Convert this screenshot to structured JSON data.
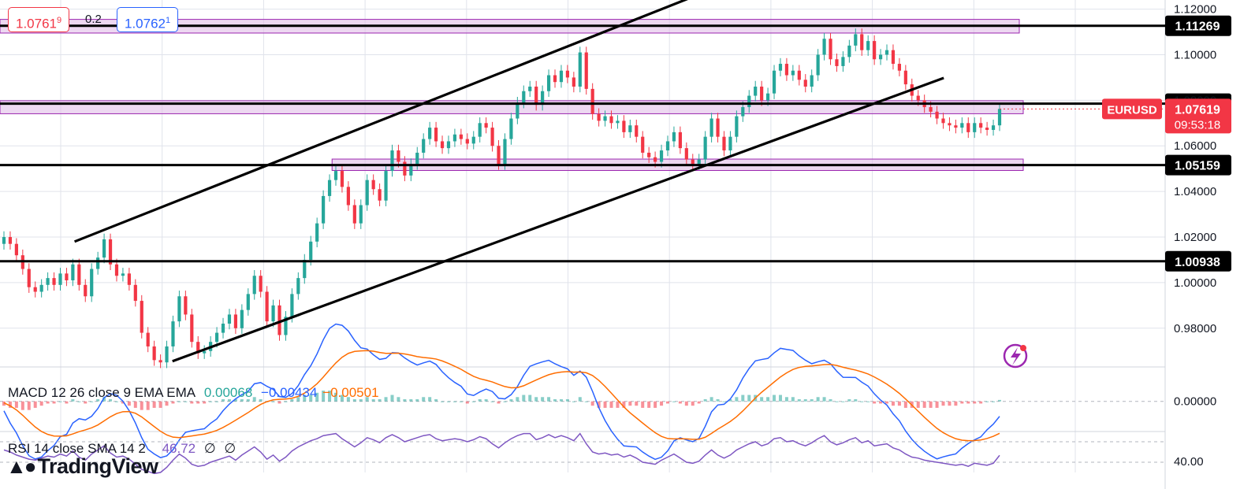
{
  "quote": {
    "bid_main": "1.0761",
    "bid_sup": "9",
    "spread": "0.2",
    "ask_main": "1.0762",
    "ask_sup": "1"
  },
  "symbol": "EURUSD",
  "last_price": "1.07619",
  "countdown": "09:53:18",
  "macd_legend": {
    "title": "MACD 12 26 close 9 EMA EMA",
    "histogram": "0.00068",
    "macd": "−0.00434",
    "signal": "−0.00501"
  },
  "rsi_legend": {
    "title": "RSI 14 close SMA 14 2",
    "value": "46.72",
    "na1": "∅",
    "na2": "∅"
  },
  "brand": "TradingView",
  "colors": {
    "up": "#26a69a",
    "down": "#f23645",
    "zone": "#e1bee7",
    "zone_border": "#9c27b0",
    "macd": "#2962ff",
    "signal": "#ff6d00",
    "rsi": "#7e57c2"
  },
  "chart_data": {
    "type": "candlestick",
    "price_ticks": [
      "1.12000",
      "1.10000",
      "1.08000",
      "1.06000",
      "1.04000",
      "1.02000",
      "1.00000",
      "0.98000"
    ],
    "ylim": [
      0.963,
      1.124
    ],
    "levels": [
      {
        "price": 1.11269,
        "label": "1.11269"
      },
      {
        "price": 1.07852,
        "label": "1.07852"
      },
      {
        "price": 1.05159,
        "label": "1.05159"
      },
      {
        "price": 1.00938,
        "label": "1.00938"
      }
    ],
    "zones": [
      {
        "from": 1.1095,
        "to": 1.1155,
        "start": 0
      },
      {
        "from": 1.0741,
        "to": 1.0798,
        "start": 0
      },
      {
        "from": 1.0492,
        "to": 1.0542,
        "start": 0.285
      }
    ],
    "channel_lines": [
      {
        "from": [
          0.064,
          1.018
        ],
        "to": [
          0.605,
          1.1275
        ]
      },
      {
        "from": [
          0.148,
          0.9655
        ],
        "to": [
          0.81,
          1.0898
        ]
      }
    ],
    "closes": [
      1.02,
      1.017,
      1.012,
      1.006,
      0.998,
      0.996,
      0.999,
      1.002,
      0.999,
      1.004,
      1.001,
      1.008,
      0.999,
      0.994,
      1.006,
      1.011,
      1.019,
      1.008,
      1.003,
      1.004,
      0.999,
      0.992,
      0.978,
      0.972,
      0.966,
      0.965,
      0.972,
      0.983,
      0.994,
      0.986,
      0.974,
      0.969,
      0.97,
      0.974,
      0.978,
      0.982,
      0.986,
      0.98,
      0.988,
      0.995,
      1.003,
      0.996,
      0.983,
      0.99,
      0.977,
      0.985,
      0.995,
      1.002,
      1.01,
      1.018,
      1.026,
      1.038,
      1.045,
      1.049,
      1.042,
      1.034,
      1.026,
      1.034,
      1.045,
      1.041,
      1.036,
      1.049,
      1.058,
      1.053,
      1.047,
      1.052,
      1.057,
      1.063,
      1.068,
      1.062,
      1.059,
      1.062,
      1.065,
      1.063,
      1.061,
      1.064,
      1.07,
      1.068,
      1.06,
      1.052,
      1.063,
      1.072,
      1.079,
      1.084,
      1.086,
      1.078,
      1.084,
      1.091,
      1.088,
      1.093,
      1.09,
      1.086,
      1.101,
      1.085,
      1.074,
      1.071,
      1.073,
      1.07,
      1.071,
      1.066,
      1.069,
      1.064,
      1.057,
      1.055,
      1.053,
      1.058,
      1.062,
      1.066,
      1.059,
      1.054,
      1.052,
      1.054,
      1.064,
      1.072,
      1.064,
      1.058,
      1.064,
      1.073,
      1.077,
      1.082,
      1.086,
      1.08,
      1.083,
      1.093,
      1.096,
      1.091,
      1.093,
      1.089,
      1.086,
      1.091,
      1.1,
      1.107,
      1.098,
      1.095,
      1.099,
      1.104,
      1.109,
      1.102,
      1.106,
      1.098,
      1.1,
      1.102,
      1.096,
      1.093,
      1.087,
      1.082,
      1.08,
      1.077,
      1.075,
      1.072,
      1.07,
      1.069,
      1.068,
      1.07,
      1.066,
      1.07,
      1.068,
      1.067,
      1.069,
      1.0762
    ],
    "macd_hist": [
      -0.002,
      -0.003,
      -0.003,
      -0.004,
      -0.004,
      -0.003,
      -0.002,
      -0.001,
      -0.001,
      0.0,
      -0.001,
      0.001,
      0.0,
      -0.001,
      0.0,
      0.001,
      0.002,
      0.001,
      0.0,
      -0.001,
      -0.002,
      -0.003,
      -0.004,
      -0.004,
      -0.003,
      -0.003,
      -0.002,
      -0.001,
      0.0,
      0.0,
      -0.001,
      -0.001,
      -0.001,
      0.0,
      0.0,
      0.001,
      0.001,
      0.001,
      0.001,
      0.001,
      0.002,
      0.001,
      0.0,
      0.0,
      -0.001,
      0.0,
      0.001,
      0.002,
      0.003,
      0.003,
      0.004,
      0.005,
      0.005,
      0.004,
      0.003,
      0.002,
      0.001,
      0.001,
      0.002,
      0.001,
      0.001,
      0.002,
      0.003,
      0.002,
      0.001,
      0.001,
      0.001,
      0.002,
      0.002,
      0.001,
      0.0,
      0.0,
      0.0,
      0.0,
      -0.001,
      0.0,
      0.001,
      0.001,
      0.0,
      -0.001,
      0.0,
      0.001,
      0.002,
      0.003,
      0.003,
      0.002,
      0.002,
      0.002,
      0.001,
      0.001,
      0.001,
      0.0,
      0.002,
      0.0,
      -0.002,
      -0.003,
      -0.003,
      -0.003,
      -0.003,
      -0.003,
      -0.002,
      -0.002,
      -0.003,
      -0.003,
      -0.003,
      -0.002,
      -0.001,
      0.0,
      -0.001,
      -0.002,
      -0.002,
      -0.001,
      0.001,
      0.002,
      0.001,
      0.0,
      0.001,
      0.002,
      0.003,
      0.003,
      0.003,
      0.002,
      0.002,
      0.003,
      0.003,
      0.002,
      0.002,
      0.001,
      0.001,
      0.001,
      0.002,
      0.002,
      0.001,
      0.0,
      0.0,
      0.001,
      0.001,
      0.0,
      0.0,
      -0.001,
      -0.001,
      -0.001,
      -0.002,
      -0.002,
      -0.003,
      -0.003,
      -0.003,
      -0.003,
      -0.003,
      -0.003,
      -0.002,
      -0.002,
      -0.002,
      -0.001,
      -0.001,
      -0.001,
      -0.001,
      0.0,
      0.0,
      0.00068
    ],
    "macd_ylim": [
      -0.014,
      0.016
    ],
    "macd_ticks": [
      "0.00000"
    ],
    "rsi_ticks": [
      "40.00"
    ],
    "rsi_ylim": [
      30,
      70
    ],
    "rsi_values": [
      52,
      50,
      47,
      45,
      43,
      42,
      44,
      46,
      45,
      48,
      46,
      51,
      45,
      42,
      48,
      52,
      56,
      49,
      45,
      46,
      43,
      38,
      33,
      31,
      29,
      30,
      35,
      42,
      48,
      44,
      38,
      36,
      37,
      40,
      42,
      44,
      46,
      42,
      47,
      51,
      55,
      50,
      43,
      47,
      41,
      45,
      51,
      55,
      58,
      61,
      63,
      66,
      67,
      68,
      63,
      59,
      55,
      59,
      64,
      62,
      59,
      64,
      67,
      64,
      60,
      62,
      64,
      66,
      67,
      63,
      61,
      62,
      63,
      62,
      60,
      62,
      65,
      63,
      58,
      54,
      59,
      63,
      66,
      68,
      68,
      62,
      64,
      67,
      64,
      66,
      64,
      61,
      68,
      58,
      50,
      48,
      49,
      47,
      48,
      45,
      47,
      44,
      40,
      39,
      38,
      42,
      45,
      48,
      44,
      40,
      39,
      41,
      47,
      52,
      47,
      44,
      47,
      52,
      55,
      58,
      60,
      56,
      58,
      63,
      64,
      60,
      61,
      58,
      56,
      59,
      63,
      66,
      60,
      57,
      59,
      62,
      64,
      59,
      61,
      56,
      57,
      58,
      54,
      52,
      48,
      45,
      44,
      42,
      41,
      40,
      39,
      38,
      37,
      38,
      36,
      39,
      38,
      37,
      39,
      46.72
    ]
  }
}
